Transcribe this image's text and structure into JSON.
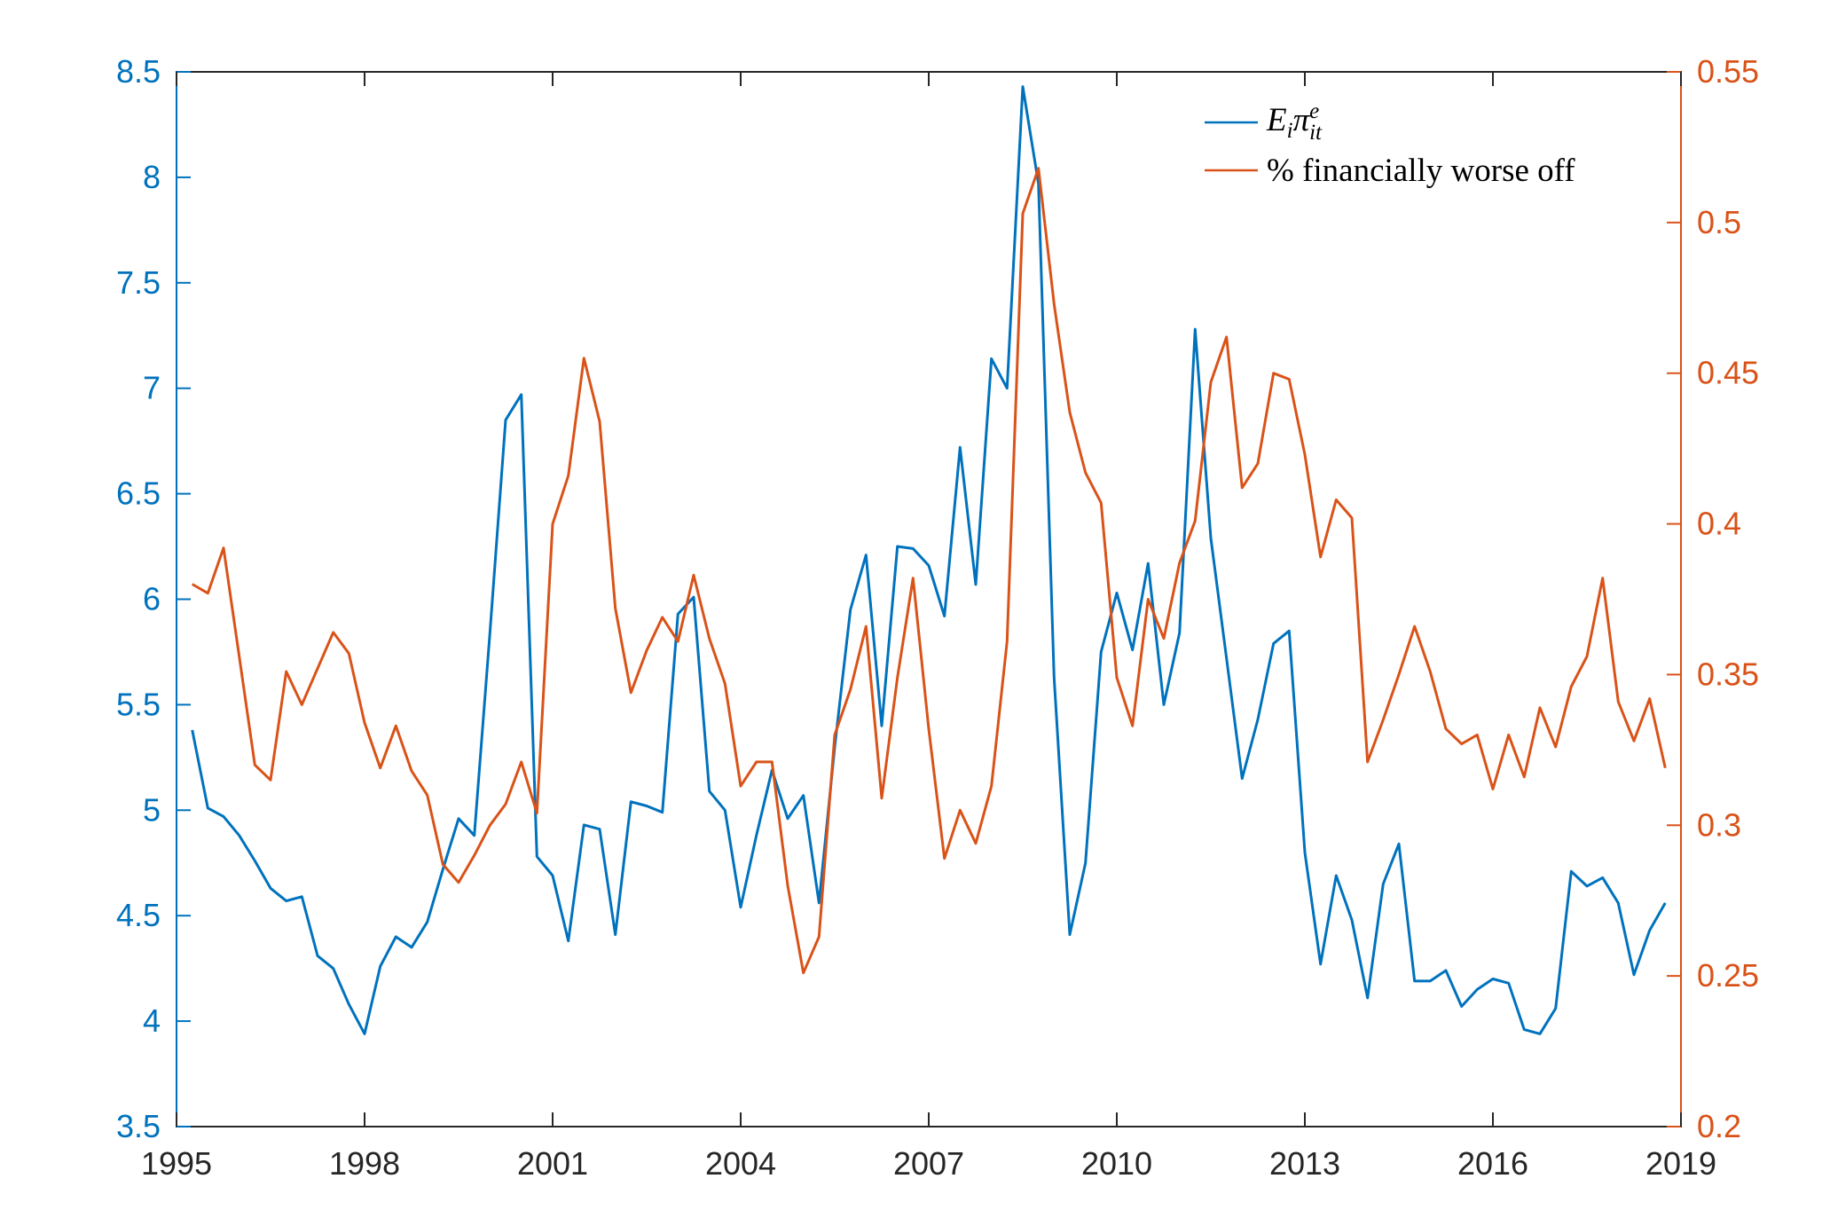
{
  "chart_data": {
    "type": "line",
    "x_ticks": [
      "1995",
      "1998",
      "2001",
      "2004",
      "2007",
      "2010",
      "2013",
      "2016",
      "2019"
    ],
    "xlim": [
      1995,
      2019
    ],
    "left_axis": {
      "ylim": [
        3.5,
        8.5
      ],
      "ticks": [
        "3.5",
        "4",
        "4.5",
        "5",
        "5.5",
        "6",
        "6.5",
        "7",
        "7.5",
        "8",
        "8.5"
      ],
      "color": "#0072BD"
    },
    "right_axis": {
      "ylim": [
        0.2,
        0.55
      ],
      "ticks": [
        "0.2",
        "0.25",
        "0.3",
        "0.35",
        "0.4",
        "0.45",
        "0.5",
        "0.55"
      ],
      "color": "#D95319"
    },
    "series": [
      {
        "name": "E_i π^e_it",
        "legend_main": "E",
        "legend_sub1": "i",
        "legend_pi": "π",
        "legend_sup": "e",
        "legend_sub2": "it",
        "axis": "left",
        "color": "#0072BD",
        "x": [
          1995.25,
          1995.5,
          1995.75,
          1996,
          1996.25,
          1996.5,
          1996.75,
          1997,
          1997.25,
          1997.5,
          1997.75,
          1998,
          1998.25,
          1998.5,
          1998.75,
          1999,
          1999.25,
          1999.5,
          1999.75,
          2000,
          2000.25,
          2000.5,
          2000.75,
          2001,
          2001.25,
          2001.5,
          2001.75,
          2002,
          2002.25,
          2002.5,
          2002.75,
          2003,
          2003.25,
          2003.5,
          2003.75,
          2004,
          2004.25,
          2004.5,
          2004.75,
          2005,
          2005.25,
          2005.5,
          2005.75,
          2006,
          2006.25,
          2006.5,
          2006.75,
          2007,
          2007.25,
          2007.5,
          2007.75,
          2008,
          2008.25,
          2008.5,
          2008.75,
          2009,
          2009.25,
          2009.5,
          2009.75,
          2010,
          2010.25,
          2010.5,
          2010.75,
          2011,
          2011.25,
          2011.5,
          2011.75,
          2012,
          2012.25,
          2012.5,
          2012.75,
          2013,
          2013.25,
          2013.5,
          2013.75,
          2014,
          2014.25,
          2014.5,
          2014.75,
          2015,
          2015.25,
          2015.5,
          2015.75,
          2016,
          2016.25,
          2016.5,
          2016.75,
          2017,
          2017.25,
          2017.5,
          2017.75,
          2018,
          2018.25,
          2018.5,
          2018.75
        ],
        "values": [
          5.38,
          5.01,
          4.97,
          4.88,
          4.76,
          4.63,
          4.57,
          4.59,
          4.31,
          4.25,
          4.08,
          3.94,
          4.26,
          4.4,
          4.35,
          4.47,
          4.72,
          4.96,
          4.88,
          5.84,
          6.85,
          6.97,
          4.78,
          4.69,
          4.38,
          4.93,
          4.91,
          4.41,
          5.04,
          5.02,
          4.99,
          5.93,
          6.01,
          5.09,
          5.0,
          4.54,
          4.88,
          5.19,
          4.96,
          5.07,
          4.56,
          5.3,
          5.95,
          6.21,
          5.4,
          6.25,
          6.24,
          6.16,
          5.92,
          6.72,
          6.07,
          7.14,
          7.0,
          8.43,
          7.97,
          5.63,
          4.41,
          4.75,
          5.75,
          6.03,
          5.76,
          6.17,
          5.5,
          5.84,
          7.28,
          6.29,
          5.72,
          5.15,
          5.43,
          5.79,
          5.85,
          4.8,
          4.27,
          4.69,
          4.48,
          4.11,
          4.65,
          4.84,
          4.19,
          4.19,
          4.24,
          4.07,
          4.15,
          4.2,
          4.18,
          3.96,
          3.94,
          4.06,
          4.71,
          4.64,
          4.68,
          4.56,
          4.22,
          4.43,
          4.56
        ]
      },
      {
        "name": "% financially worse off",
        "axis": "right",
        "color": "#D95319",
        "x": [
          1995.25,
          1995.5,
          1995.75,
          1996,
          1996.25,
          1996.5,
          1996.75,
          1997,
          1997.25,
          1997.5,
          1997.75,
          1998,
          1998.25,
          1998.5,
          1998.75,
          1999,
          1999.25,
          1999.5,
          1999.75,
          2000,
          2000.25,
          2000.5,
          2000.75,
          2001,
          2001.25,
          2001.5,
          2001.75,
          2002,
          2002.25,
          2002.5,
          2002.75,
          2003,
          2003.25,
          2003.5,
          2003.75,
          2004,
          2004.25,
          2004.5,
          2004.75,
          2005,
          2005.25,
          2005.5,
          2005.75,
          2006,
          2006.25,
          2006.5,
          2006.75,
          2007,
          2007.25,
          2007.5,
          2007.75,
          2008,
          2008.25,
          2008.5,
          2008.75,
          2009,
          2009.25,
          2009.5,
          2009.75,
          2010,
          2010.25,
          2010.5,
          2010.75,
          2011,
          2011.25,
          2011.5,
          2011.75,
          2012,
          2012.25,
          2012.5,
          2012.75,
          2013,
          2013.25,
          2013.5,
          2013.75,
          2014,
          2014.25,
          2014.5,
          2014.75,
          2015,
          2015.25,
          2015.5,
          2015.75,
          2016,
          2016.25,
          2016.5,
          2016.75,
          2017,
          2017.25,
          2017.5,
          2017.75,
          2018,
          2018.25,
          2018.5,
          2018.75
        ],
        "values": [
          0.38,
          0.377,
          0.392,
          0.356,
          0.32,
          0.315,
          0.351,
          0.34,
          0.352,
          0.364,
          0.357,
          0.334,
          0.319,
          0.333,
          0.318,
          0.31,
          0.287,
          0.281,
          0.29,
          0.3,
          0.307,
          0.321,
          0.304,
          0.4,
          0.416,
          0.455,
          0.434,
          0.372,
          0.344,
          0.358,
          0.369,
          0.361,
          0.383,
          0.362,
          0.347,
          0.313,
          0.321,
          0.321,
          0.28,
          0.251,
          0.263,
          0.33,
          0.345,
          0.366,
          0.309,
          0.349,
          0.382,
          0.332,
          0.289,
          0.305,
          0.294,
          0.313,
          0.361,
          0.503,
          0.518,
          0.473,
          0.437,
          0.417,
          0.407,
          0.349,
          0.333,
          0.375,
          0.362,
          0.387,
          0.401,
          0.447,
          0.462,
          0.412,
          0.42,
          0.45,
          0.448,
          0.423,
          0.389,
          0.408,
          0.402,
          0.321,
          0.335,
          0.35,
          0.366,
          0.351,
          0.332,
          0.327,
          0.33,
          0.312,
          0.33,
          0.316,
          0.339,
          0.326,
          0.346,
          0.356,
          0.382,
          0.341,
          0.328,
          0.342,
          0.319
        ]
      }
    ]
  }
}
